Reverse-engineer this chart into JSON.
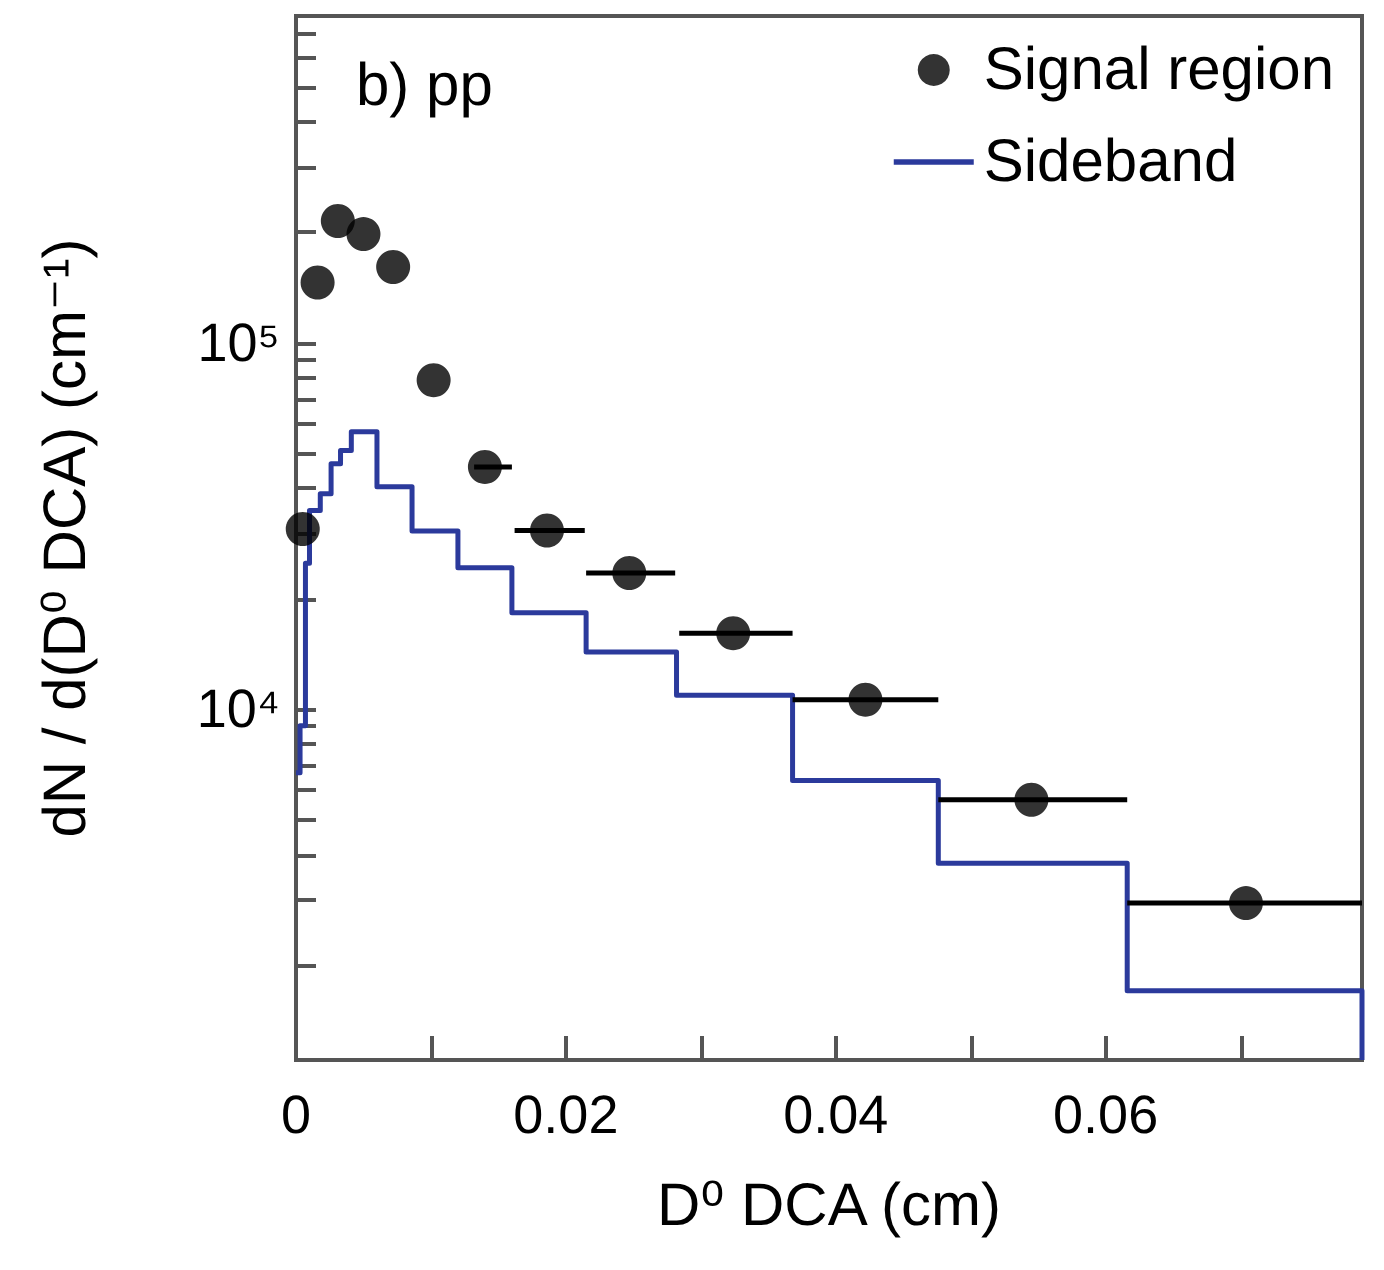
{
  "chart_data": {
    "type": "scatter",
    "xlabel": "D⁰ DCA (cm)",
    "ylabel": "dN / d(D⁰ DCA) (cm⁻¹)",
    "annotations": [
      "b) pp"
    ],
    "log": "y",
    "legend": "top right",
    "marker": "circle",
    "grid": false,
    "xlim": [
      0,
      0.079
    ],
    "ylim": [
      1100,
      780000
    ],
    "xticks": [
      0,
      {
        "value": 0.01,
        "label": null
      },
      0.02,
      {
        "value": 0.03,
        "label": null
      },
      0.04,
      {
        "value": 0.05,
        "label": null
      },
      0.06,
      {
        "value": 0.07,
        "label": null
      }
    ],
    "yticks": [
      {
        "value": 2000,
        "label": null
      },
      {
        "value": 3000,
        "label": null
      },
      {
        "value": 4000,
        "label": null
      },
      {
        "value": 5000,
        "label": null
      },
      {
        "value": 6000,
        "label": null
      },
      {
        "value": 7000,
        "label": null
      },
      {
        "value": 8000,
        "label": null
      },
      {
        "value": 9000,
        "label": null
      },
      {
        "value": 10000,
        "label": "10⁴"
      },
      {
        "value": 20000,
        "label": null
      },
      {
        "value": 30000,
        "label": null
      },
      {
        "value": 40000,
        "label": null
      },
      {
        "value": 50000,
        "label": null
      },
      {
        "value": 60000,
        "label": null
      },
      {
        "value": 70000,
        "label": null
      },
      {
        "value": 80000,
        "label": null
      },
      {
        "value": 90000,
        "label": null
      },
      {
        "value": 100000,
        "label": "10⁵"
      },
      {
        "value": 200000,
        "label": null
      },
      {
        "value": 300000,
        "label": null
      },
      {
        "value": 400000,
        "label": null
      },
      {
        "value": 500000,
        "label": null
      },
      {
        "value": 600000,
        "label": null
      },
      {
        "value": 700000,
        "label": null
      }
    ],
    "series": [
      {
        "name": "Signal region",
        "color": "#000000",
        "x": [
          0.0005,
          0.0016,
          0.0031,
          0.005,
          0.0072,
          0.0102,
          0.014,
          0.0186,
          0.0247,
          0.0324,
          0.0422,
          0.0545,
          0.0704
        ],
        "values": [
          31000,
          146000,
          215000,
          198000,
          161000,
          79000,
          45800,
          30700,
          23500,
          16100,
          10600,
          5650,
          2950
        ],
        "xerrors": [
          null,
          null,
          null,
          null,
          null,
          null,
          [
            0.0132,
            0.016
          ],
          [
            0.0162,
            0.0214
          ],
          [
            0.0215,
            0.0281
          ],
          [
            0.0284,
            0.0368
          ],
          [
            0.0368,
            0.0476
          ],
          [
            0.0476,
            0.0616
          ],
          [
            0.0616,
            0.079
          ]
        ]
      },
      {
        "name": "Sideband",
        "type": "histogram",
        "color": "#2b3a9c",
        "bins": [
          0,
          0.0003,
          0.0007,
          0.001,
          0.0018,
          0.0026,
          0.0033,
          0.0041,
          0.006,
          0.0086,
          0.012,
          0.016,
          0.0215,
          0.0282,
          0.0368,
          0.0476,
          0.0616,
          0.079
        ],
        "values": [
          6700,
          9000,
          25000,
          34800,
          38700,
          46700,
          50800,
          57100,
          40400,
          30600,
          24300,
          18300,
          14300,
          10900,
          6380,
          3790,
          1700
        ]
      }
    ]
  }
}
